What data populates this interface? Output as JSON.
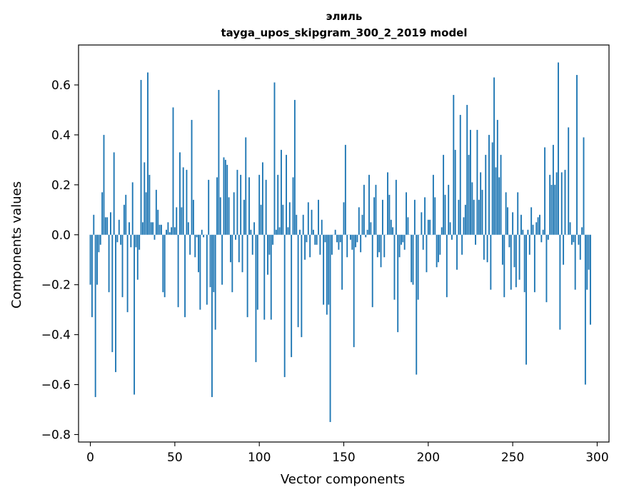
{
  "chart_data": {
    "type": "bar",
    "title_line1": "элиль",
    "title_line2": "tayga_upos_skipgram_300_2_2019 model",
    "xlabel": "Vector components",
    "ylabel": "Components values",
    "xlim": [
      -7,
      307
    ],
    "ylim": [
      -0.83,
      0.76
    ],
    "xticks": [
      0,
      50,
      100,
      150,
      200,
      250,
      300
    ],
    "xtick_labels": [
      "0",
      "50",
      "100",
      "150",
      "200",
      "250",
      "300"
    ],
    "yticks": [
      -0.8,
      -0.6,
      -0.4,
      -0.2,
      0.0,
      0.2,
      0.4,
      0.6
    ],
    "ytick_labels": [
      "−0.8",
      "−0.6",
      "−0.4",
      "−0.2",
      "0.0",
      "0.2",
      "0.4",
      "0.6"
    ],
    "bar_color": "#1f77b4",
    "values": [
      -0.2,
      -0.33,
      0.08,
      -0.65,
      -0.2,
      -0.07,
      -0.04,
      0.17,
      0.4,
      0.07,
      0.07,
      -0.23,
      0.09,
      -0.47,
      0.33,
      -0.55,
      -0.03,
      0.06,
      -0.04,
      -0.25,
      0.12,
      0.16,
      -0.31,
      0.05,
      -0.05,
      0.21,
      -0.64,
      -0.05,
      -0.18,
      -0.06,
      0.62,
      0.05,
      0.29,
      0.17,
      0.65,
      0.24,
      0.05,
      0.05,
      -0.02,
      0.18,
      0.1,
      0.04,
      0.04,
      -0.23,
      -0.25,
      0.02,
      0.05,
      0.01,
      0.03,
      0.51,
      0.03,
      0.11,
      -0.29,
      0.33,
      0.11,
      0.27,
      -0.33,
      0.26,
      0.05,
      -0.08,
      0.46,
      0.14,
      -0.09,
      -0.01,
      -0.15,
      -0.3,
      0.02,
      -0.01,
      0.0,
      -0.28,
      0.22,
      -0.21,
      -0.65,
      -0.23,
      -0.38,
      0.23,
      0.58,
      0.15,
      -0.2,
      0.31,
      0.3,
      0.28,
      0.15,
      -0.11,
      -0.23,
      0.17,
      -0.02,
      0.26,
      -0.11,
      0.24,
      -0.15,
      0.14,
      0.39,
      -0.33,
      0.23,
      0.02,
      -0.08,
      0.05,
      -0.51,
      -0.3,
      0.24,
      0.12,
      0.29,
      -0.34,
      0.22,
      -0.16,
      -0.08,
      -0.34,
      -0.04,
      0.61,
      0.02,
      0.24,
      0.03,
      0.34,
      0.12,
      -0.57,
      0.32,
      0.03,
      0.13,
      -0.49,
      0.23,
      0.54,
      0.08,
      -0.37,
      0.02,
      -0.41,
      0.08,
      -0.1,
      -0.03,
      0.13,
      -0.09,
      0.1,
      0.02,
      -0.04,
      -0.04,
      0.14,
      -0.08,
      0.06,
      -0.28,
      -0.03,
      -0.32,
      -0.28,
      -0.75,
      -0.08,
      0.0,
      0.02,
      -0.03,
      -0.06,
      -0.03,
      -0.22,
      0.13,
      0.36,
      -0.09,
      0.0,
      -0.02,
      -0.06,
      -0.45,
      -0.05,
      -0.03,
      0.11,
      -0.07,
      0.08,
      0.2,
      -0.01,
      0.02,
      0.24,
      0.05,
      -0.29,
      0.15,
      0.2,
      -0.09,
      -0.07,
      -0.13,
      0.14,
      -0.09,
      0.0,
      0.25,
      0.16,
      0.06,
      0.03,
      -0.26,
      0.22,
      -0.39,
      -0.09,
      -0.04,
      -0.03,
      -0.06,
      0.17,
      0.07,
      0.0,
      -0.19,
      -0.2,
      0.14,
      -0.56,
      -0.26,
      0.0,
      0.09,
      -0.06,
      0.15,
      -0.15,
      0.06,
      0.06,
      0.0,
      0.24,
      0.15,
      -0.13,
      -0.11,
      -0.08,
      0.03,
      0.32,
      0.16,
      -0.25,
      0.2,
      0.05,
      -0.02,
      0.56,
      0.34,
      -0.14,
      0.14,
      0.48,
      -0.08,
      0.07,
      0.12,
      0.52,
      0.32,
      0.42,
      0.21,
      0.14,
      -0.04,
      0.42,
      0.14,
      0.25,
      0.18,
      -0.1,
      0.32,
      -0.11,
      0.4,
      -0.22,
      0.37,
      0.63,
      0.27,
      0.46,
      0.23,
      0.32,
      -0.12,
      -0.25,
      0.17,
      0.11,
      -0.05,
      -0.22,
      0.09,
      -0.13,
      -0.21,
      0.17,
      -0.18,
      0.08,
      0.02,
      -0.23,
      -0.52,
      0.02,
      -0.08,
      0.11,
      0.04,
      -0.23,
      0.05,
      0.07,
      0.08,
      -0.03,
      0.02,
      0.35,
      -0.27,
      -0.02,
      0.24,
      0.2,
      0.36,
      0.2,
      0.25,
      0.69,
      -0.38,
      0.25,
      -0.12,
      0.26,
      0.0,
      0.43,
      0.05,
      -0.04,
      -0.03,
      -0.22,
      0.64,
      -0.04,
      -0.1,
      0.03,
      0.39,
      -0.6,
      -0.22,
      -0.14,
      -0.36
    ]
  }
}
